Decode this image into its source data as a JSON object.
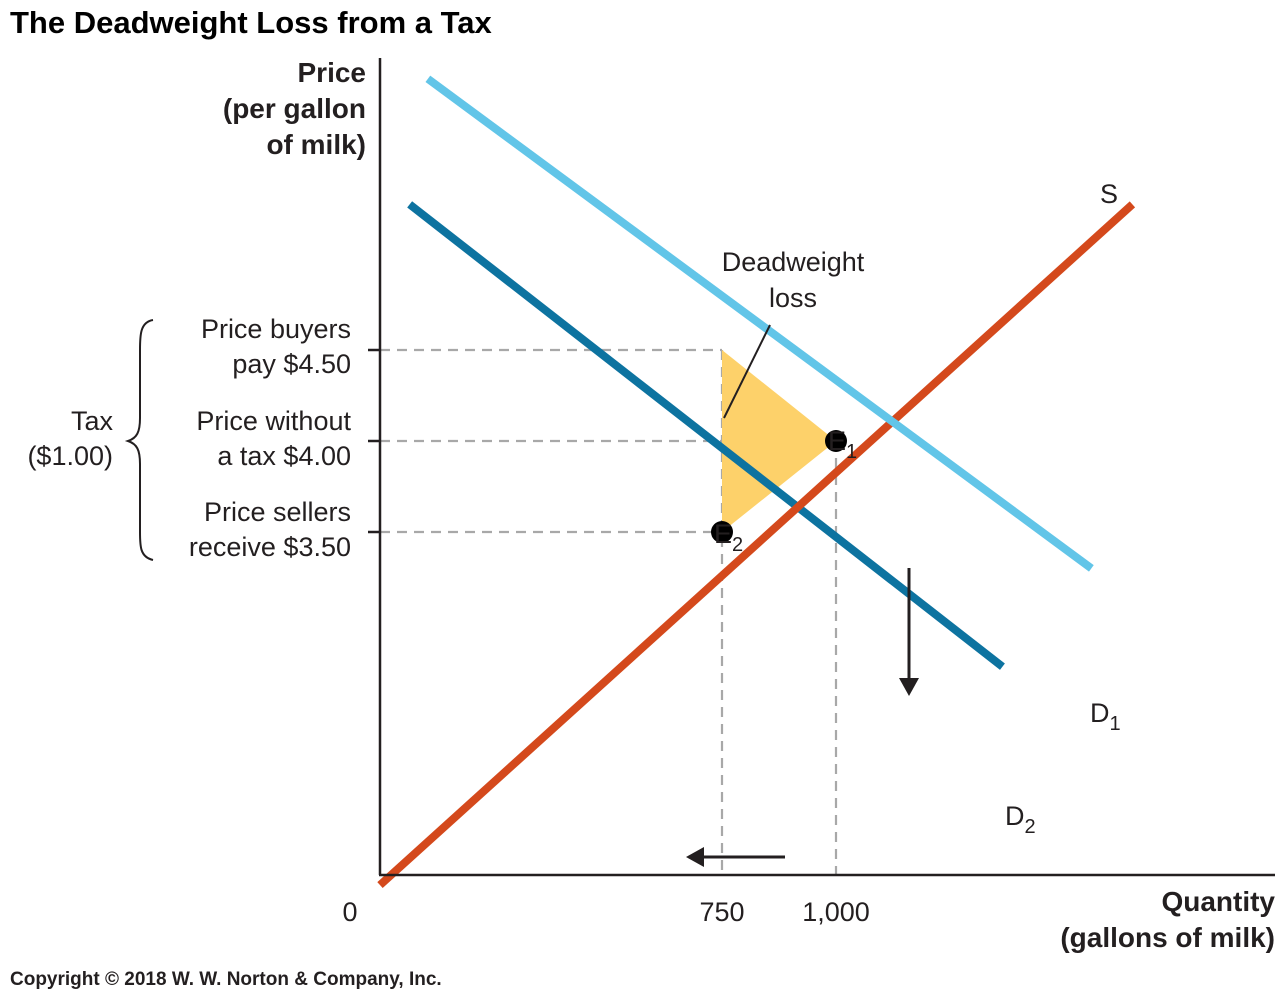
{
  "chart_data": {
    "type": "line",
    "title": "The Deadweight Loss from a Tax",
    "ylabel_lines": [
      "Price",
      "(per gallon",
      "of milk)"
    ],
    "xlabel_lines": [
      "Quantity",
      "(gallons of milk)"
    ],
    "origin_label": "0",
    "x_ticks": [
      {
        "value": 750,
        "label": "750"
      },
      {
        "value": 1000,
        "label": "1,000"
      }
    ],
    "y_ticks": [
      {
        "value": 4.5,
        "label_lines": [
          "Price buyers",
          "pay $4.50"
        ]
      },
      {
        "value": 4.0,
        "label_lines": [
          "Price without",
          "a tax $4.00"
        ]
      },
      {
        "value": 3.5,
        "label_lines": [
          "Price sellers",
          "receive $3.50"
        ]
      }
    ],
    "tax_label_lines": [
      "Tax",
      "($1.00)"
    ],
    "series": [
      {
        "name": "S",
        "color": "#d4491c",
        "points": [
          [
            0,
            1.56
          ],
          [
            1650,
            5.3
          ]
        ]
      },
      {
        "name": "D",
        "sub": "1",
        "color": "#62c5e8",
        "points": [
          [
            105,
            5.99
          ],
          [
            1560,
            3.3
          ]
        ]
      },
      {
        "name": "D",
        "sub": "2",
        "color": "#0d73a0",
        "points": [
          [
            65,
            5.3
          ],
          [
            1365,
            2.76
          ]
        ]
      }
    ],
    "points": [
      {
        "name": "E",
        "sub": "1",
        "x": 1000,
        "y": 4.0
      },
      {
        "name": "E",
        "sub": "2",
        "x": 750,
        "y": 3.5
      }
    ],
    "annotation_lines": [
      "Deadweight",
      "loss"
    ],
    "deadweight_loss_triangle": [
      [
        750,
        4.5
      ],
      [
        1000,
        4.0
      ],
      [
        750,
        3.5
      ]
    ],
    "deadweight_color": "#fdd16a",
    "copyright": "Copyright © 2018 W. W. Norton & Company, Inc."
  }
}
